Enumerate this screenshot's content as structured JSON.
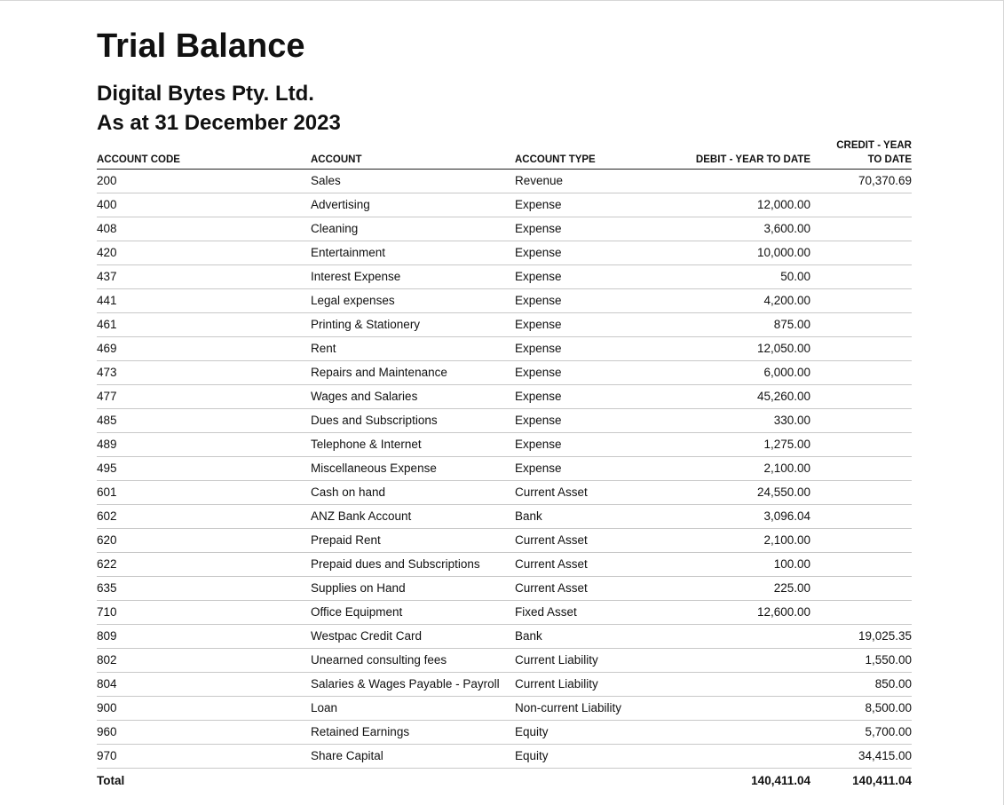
{
  "report": {
    "title": "Trial Balance",
    "organisation": "Digital Bytes Pty. Ltd.",
    "as_at": "As at 31 December 2023"
  },
  "columns": {
    "code": "ACCOUNT CODE",
    "account": "ACCOUNT",
    "type": "ACCOUNT TYPE",
    "debit": "DEBIT - YEAR TO DATE",
    "credit": "CREDIT - YEAR TO DATE"
  },
  "rows": [
    {
      "code": "200",
      "account": "Sales",
      "type": "Revenue",
      "debit": "",
      "credit": "70,370.69"
    },
    {
      "code": "400",
      "account": "Advertising",
      "type": "Expense",
      "debit": "12,000.00",
      "credit": ""
    },
    {
      "code": "408",
      "account": "Cleaning",
      "type": "Expense",
      "debit": "3,600.00",
      "credit": ""
    },
    {
      "code": "420",
      "account": "Entertainment",
      "type": "Expense",
      "debit": "10,000.00",
      "credit": ""
    },
    {
      "code": "437",
      "account": "Interest Expense",
      "type": "Expense",
      "debit": "50.00",
      "credit": ""
    },
    {
      "code": "441",
      "account": "Legal expenses",
      "type": "Expense",
      "debit": "4,200.00",
      "credit": ""
    },
    {
      "code": "461",
      "account": "Printing & Stationery",
      "type": "Expense",
      "debit": "875.00",
      "credit": ""
    },
    {
      "code": "469",
      "account": "Rent",
      "type": "Expense",
      "debit": "12,050.00",
      "credit": ""
    },
    {
      "code": "473",
      "account": "Repairs and Maintenance",
      "type": "Expense",
      "debit": "6,000.00",
      "credit": ""
    },
    {
      "code": "477",
      "account": "Wages and Salaries",
      "type": "Expense",
      "debit": "45,260.00",
      "credit": ""
    },
    {
      "code": "485",
      "account": "Dues and Subscriptions",
      "type": "Expense",
      "debit": "330.00",
      "credit": ""
    },
    {
      "code": "489",
      "account": "Telephone & Internet",
      "type": "Expense",
      "debit": "1,275.00",
      "credit": ""
    },
    {
      "code": "495",
      "account": "Miscellaneous Expense",
      "type": "Expense",
      "debit": "2,100.00",
      "credit": ""
    },
    {
      "code": "601",
      "account": "Cash on hand",
      "type": "Current Asset",
      "debit": "24,550.00",
      "credit": ""
    },
    {
      "code": "602",
      "account": "ANZ Bank Account",
      "type": "Bank",
      "debit": "3,096.04",
      "credit": ""
    },
    {
      "code": "620",
      "account": "Prepaid Rent",
      "type": "Current Asset",
      "debit": "2,100.00",
      "credit": ""
    },
    {
      "code": "622",
      "account": "Prepaid dues and Subscriptions",
      "type": "Current Asset",
      "debit": "100.00",
      "credit": ""
    },
    {
      "code": "635",
      "account": "Supplies on Hand",
      "type": "Current Asset",
      "debit": "225.00",
      "credit": ""
    },
    {
      "code": "710",
      "account": "Office Equipment",
      "type": "Fixed Asset",
      "debit": "12,600.00",
      "credit": ""
    },
    {
      "code": "809",
      "account": "Westpac Credit Card",
      "type": "Bank",
      "debit": "",
      "credit": "19,025.35"
    },
    {
      "code": "802",
      "account": "Unearned consulting fees",
      "type": "Current Liability",
      "debit": "",
      "credit": "1,550.00"
    },
    {
      "code": "804",
      "account": "Salaries & Wages Payable - Payroll",
      "type": "Current Liability",
      "debit": "",
      "credit": "850.00"
    },
    {
      "code": "900",
      "account": "Loan",
      "type": "Non-current Liability",
      "debit": "",
      "credit": "8,500.00"
    },
    {
      "code": "960",
      "account": "Retained Earnings",
      "type": "Equity",
      "debit": "",
      "credit": "5,700.00"
    },
    {
      "code": "970",
      "account": "Share Capital",
      "type": "Equity",
      "debit": "",
      "credit": "34,415.00"
    }
  ],
  "total": {
    "label": "Total",
    "debit": "140,411.04",
    "credit": "140,411.04"
  }
}
